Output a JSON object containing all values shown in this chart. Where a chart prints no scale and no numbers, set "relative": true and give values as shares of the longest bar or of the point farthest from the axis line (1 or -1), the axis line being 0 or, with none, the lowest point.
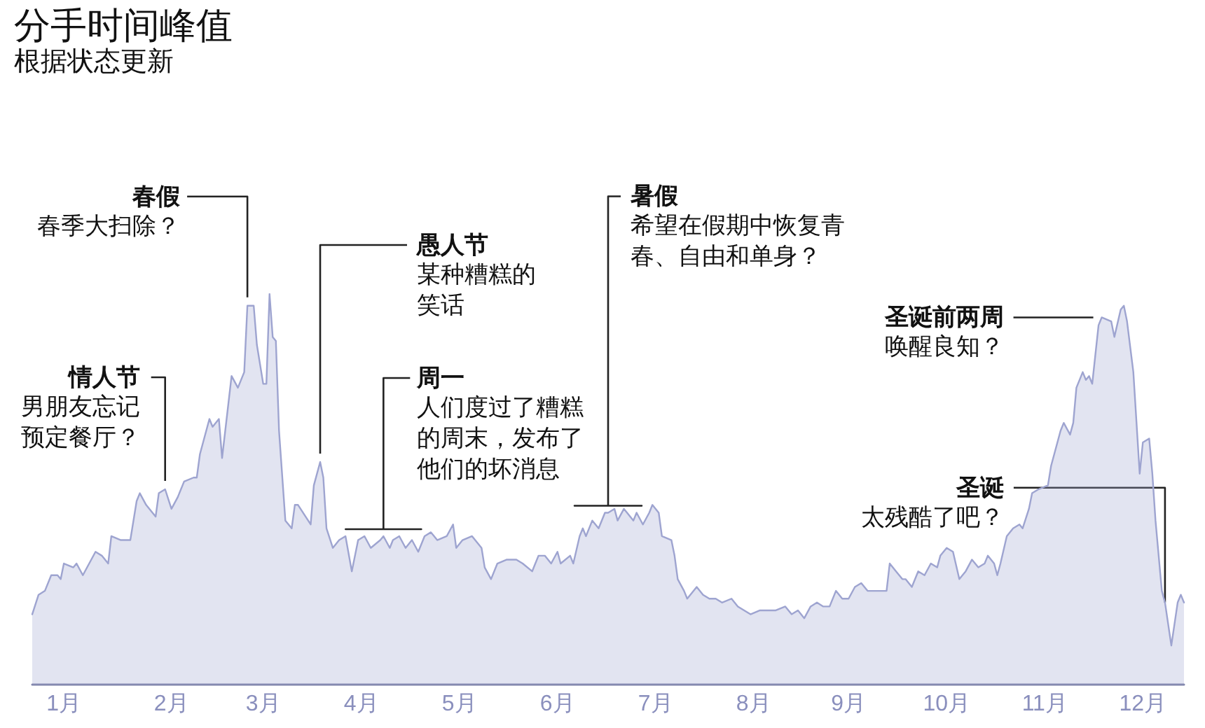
{
  "chart_data": {
    "type": "area",
    "title": "分手时间峰值",
    "subtitle": "根据状态更新",
    "relative": true,
    "x": [
      "--01-01",
      "--01-03",
      "--01-05",
      "--01-07",
      "--01-09",
      "--01-10",
      "--01-11",
      "--01-14",
      "--01-15",
      "--01-17",
      "--01-21",
      "--01-23",
      "--01-25",
      "--01-26",
      "--01-29",
      "--02-01",
      "--02-03",
      "--02-04",
      "--02-06",
      "--02-09",
      "--02-10",
      "--02-12",
      "--02-14",
      "--02-16",
      "--02-18",
      "--02-21",
      "--02-22",
      "--02-23",
      "--02-26",
      "--02-27",
      "--03-01",
      "--03-02",
      "--03-04",
      "--03-05",
      "--03-07",
      "--03-09",
      "--03-10",
      "--03-12",
      "--03-13",
      "--03-15",
      "--03-16",
      "--03-17",
      "--03-18",
      "--03-19",
      "--03-20",
      "--03-22",
      "--03-24",
      "--03-25",
      "--03-26",
      "--03-30",
      "--03-31",
      "--04-02",
      "--04-03",
      "--04-04",
      "--04-06",
      "--04-08",
      "--04-10",
      "--04-12",
      "--04-14",
      "--04-16",
      "--04-18",
      "--04-21",
      "--04-22",
      "--04-24",
      "--04-25",
      "--04-27",
      "--04-29",
      "--05-01",
      "--05-03",
      "--05-05",
      "--05-07",
      "--05-09",
      "--05-12",
      "--05-14",
      "--05-15",
      "--05-17",
      "--05-20",
      "--05-23",
      "--05-24",
      "--05-26",
      "--05-28",
      "--05-31",
      "--06-03",
      "--06-05",
      "--06-08",
      "--06-10",
      "--06-12",
      "--06-14",
      "--06-16",
      "--06-17",
      "--06-20",
      "--06-21",
      "--06-23",
      "--06-24",
      "--06-25",
      "--06-27",
      "--06-29",
      "--07-01",
      "--07-02",
      "--07-04",
      "--07-05",
      "--07-07",
      "--07-08",
      "--07-10",
      "--07-11",
      "--07-13",
      "--07-15",
      "--07-16",
      "--07-18",
      "--07-19",
      "--07-22",
      "--07-23",
      "--07-24",
      "--07-26",
      "--07-27",
      "--07-30",
      "--08-01",
      "--08-03",
      "--08-05",
      "--08-07",
      "--08-10",
      "--08-12",
      "--08-14",
      "--08-16",
      "--08-19",
      "--08-22",
      "--08-24",
      "--08-27",
      "--08-29",
      "--08-31",
      "--09-02",
      "--09-04",
      "--09-06",
      "--09-08",
      "--09-10",
      "--09-12",
      "--09-14",
      "--09-16",
      "--09-18",
      "--09-20",
      "--09-22",
      "--09-24",
      "--09-25",
      "--09-28",
      "--09-29",
      "--10-01",
      "--10-03",
      "--10-04",
      "--10-06",
      "--10-08",
      "--10-10",
      "--10-12",
      "--10-14",
      "--10-15",
      "--10-17",
      "--10-19",
      "--10-21",
      "--10-23",
      "--10-25",
      "--10-27",
      "--10-29",
      "--10-30",
      "--11-01",
      "--11-02",
      "--11-03",
      "--11-05",
      "--11-07",
      "--11-09",
      "--11-10",
      "--11-12",
      "--11-13",
      "--11-15",
      "--11-18",
      "--11-19",
      "--11-21",
      "--11-22",
      "--11-23",
      "--11-25",
      "--11-26",
      "--11-27",
      "--11-29",
      "--11-30",
      "--12-01",
      "--12-02",
      "--12-04",
      "--12-05",
      "--12-08",
      "--12-09",
      "--12-11",
      "--12-12",
      "--12-13",
      "--12-15",
      "--12-17",
      "--12-18",
      "--12-20",
      "--12-21",
      "--12-22",
      "--12-24",
      "--12-25",
      "--12-27",
      "--12-29",
      "--12-30",
      "--12-31"
    ],
    "series": [
      {
        "color": "#9ea4d0",
        "values": [
          0.18,
          0.23,
          0.24,
          0.28,
          0.28,
          0.27,
          0.31,
          0.3,
          0.31,
          0.28,
          0.34,
          0.33,
          0.31,
          0.38,
          0.37,
          0.37,
          0.47,
          0.49,
          0.46,
          0.43,
          0.49,
          0.5,
          0.45,
          0.48,
          0.52,
          0.53,
          0.53,
          0.59,
          0.68,
          0.66,
          0.68,
          0.58,
          0.72,
          0.79,
          0.76,
          0.8,
          0.97,
          0.97,
          0.87,
          0.77,
          0.77,
          1.0,
          0.89,
          0.88,
          0.65,
          0.42,
          0.4,
          0.46,
          0.46,
          0.41,
          0.51,
          0.57,
          0.53,
          0.4,
          0.35,
          0.37,
          0.38,
          0.29,
          0.37,
          0.38,
          0.35,
          0.37,
          0.38,
          0.35,
          0.37,
          0.38,
          0.35,
          0.37,
          0.34,
          0.38,
          0.39,
          0.37,
          0.38,
          0.41,
          0.35,
          0.37,
          0.38,
          0.35,
          0.3,
          0.27,
          0.31,
          0.32,
          0.32,
          0.31,
          0.29,
          0.33,
          0.33,
          0.31,
          0.34,
          0.31,
          0.33,
          0.31,
          0.38,
          0.4,
          0.38,
          0.42,
          0.4,
          0.44,
          0.44,
          0.45,
          0.42,
          0.45,
          0.44,
          0.42,
          0.44,
          0.41,
          0.44,
          0.46,
          0.44,
          0.38,
          0.37,
          0.33,
          0.27,
          0.24,
          0.22,
          0.25,
          0.23,
          0.22,
          0.22,
          0.21,
          0.22,
          0.2,
          0.19,
          0.18,
          0.19,
          0.19,
          0.19,
          0.2,
          0.18,
          0.19,
          0.17,
          0.2,
          0.21,
          0.2,
          0.2,
          0.24,
          0.22,
          0.22,
          0.25,
          0.26,
          0.24,
          0.24,
          0.24,
          0.24,
          0.31,
          0.29,
          0.27,
          0.27,
          0.25,
          0.29,
          0.28,
          0.31,
          0.3,
          0.33,
          0.35,
          0.34,
          0.27,
          0.29,
          0.32,
          0.3,
          0.31,
          0.33,
          0.31,
          0.28,
          0.31,
          0.38,
          0.4,
          0.41,
          0.4,
          0.45,
          0.49,
          0.5,
          0.51,
          0.56,
          0.62,
          0.65,
          0.67,
          0.64,
          0.67,
          0.76,
          0.8,
          0.78,
          0.79,
          0.77,
          0.92,
          0.94,
          0.93,
          0.89,
          0.96,
          0.97,
          0.93,
          0.8,
          0.54,
          0.62,
          0.63,
          0.54,
          0.42,
          0.24,
          0.21,
          0.1,
          0.21,
          0.23,
          0.21
        ]
      }
    ],
    "xlim": [
      "--01-01",
      "--12-31"
    ],
    "xticks": [
      {
        "value": "--01-11",
        "label": "1月"
      },
      {
        "value": "--02-14",
        "label": "2月"
      },
      {
        "value": "--03-15",
        "label": "3月"
      },
      {
        "value": "--04-15",
        "label": "4月"
      },
      {
        "value": "--05-16",
        "label": "5月"
      },
      {
        "value": "--06-16",
        "label": "6月"
      },
      {
        "value": "--07-17",
        "label": "7月"
      },
      {
        "value": "--08-17",
        "label": "8月"
      },
      {
        "value": "--09-16",
        "label": "9月"
      },
      {
        "value": "--10-17",
        "label": "10月"
      },
      {
        "value": "--11-17",
        "label": "11月"
      },
      {
        "value": "--12-18",
        "label": "12月"
      }
    ],
    "annotations": [
      {
        "text": "情人节",
        "x": "--02-12",
        "y": 0.5
      },
      "男朋友忘记预定餐厅？",
      {
        "text": "春假",
        "x": "--03-10",
        "y": 0.97
      },
      "春季大扫除？",
      {
        "text": "愚人节",
        "x": "--04-02",
        "y": 0.57
      },
      "某种糟糕的笑话",
      {
        "text": "周一",
        "x": "--04-22",
        "y": 0.38
      },
      "人们度过了糟糕的周末，发布了他们的坏消息",
      {
        "text": "暑假",
        "x": "--07-02",
        "y": 0.44
      },
      "希望在假期中恢复青春、自由和单身？",
      {
        "text": "圣诞前两周",
        "x": "--12-05",
        "y": 0.94
      },
      "唤醒良知？",
      {
        "text": "圣诞",
        "x": "--12-25",
        "y": 0.21
      },
      "太残酷了吧？"
    ]
  }
}
